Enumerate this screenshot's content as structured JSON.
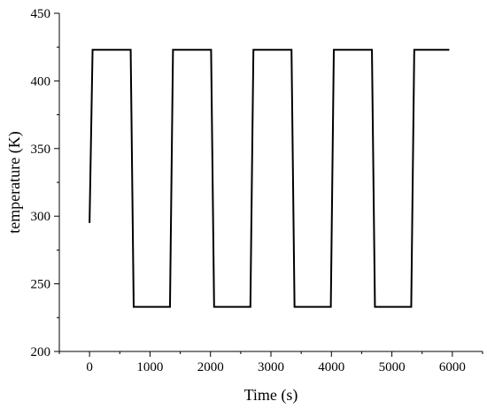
{
  "chart_data": {
    "type": "line",
    "title": "",
    "xlabel": "Time (s)",
    "ylabel": "temperature (K)",
    "xlim": [
      -500,
      6500
    ],
    "ylim": [
      200,
      450
    ],
    "grid": false,
    "x_ticks": [
      0,
      1000,
      2000,
      3000,
      4000,
      5000,
      6000
    ],
    "x_tick_labels": [
      "0",
      "1000",
      "2000",
      "3000",
      "4000",
      "5000",
      "6000"
    ],
    "y_ticks": [
      200,
      250,
      300,
      350,
      400,
      450
    ],
    "y_tick_labels": [
      "200",
      "250",
      "300",
      "350",
      "400",
      "450"
    ],
    "series": [
      {
        "color": "#000000",
        "x": [
          0,
          50,
          680,
          730,
          1330,
          1380,
          2010,
          2060,
          2660,
          2710,
          3340,
          3390,
          3990,
          4040,
          4670,
          4720,
          5320,
          5370,
          5950
        ],
        "y": [
          295,
          423,
          423,
          233,
          233,
          423,
          423,
          233,
          233,
          423,
          423,
          233,
          233,
          423,
          423,
          233,
          233,
          423,
          423
        ]
      }
    ]
  }
}
